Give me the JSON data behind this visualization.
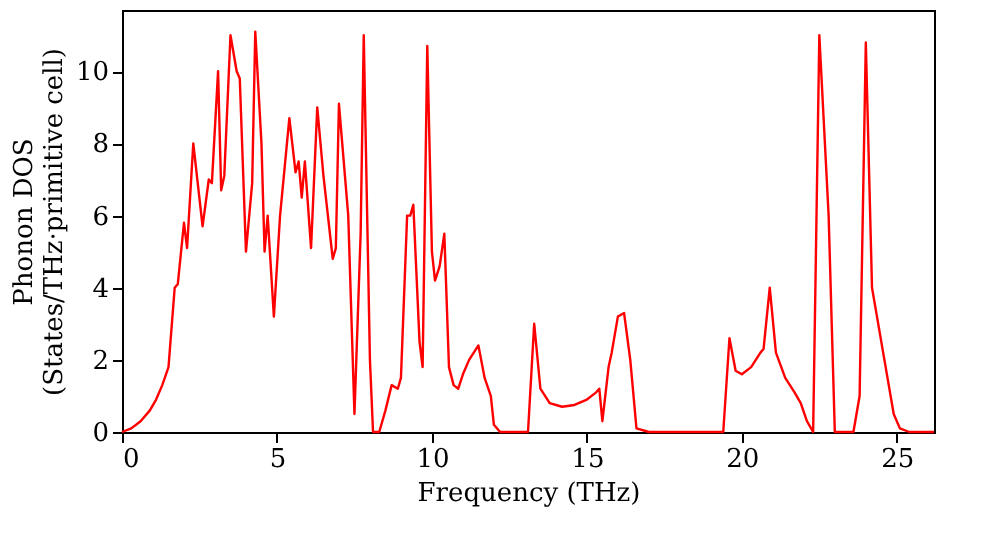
{
  "chart_data": {
    "type": "line",
    "xlabel": "Frequency (THz)",
    "ylabel": [
      "Phonon DOS",
      "(States/THz·primitive cell)"
    ],
    "xlim": [
      0,
      26.2
    ],
    "xticks": [
      0,
      5,
      10,
      15,
      20,
      25
    ],
    "ylim": [
      0,
      11.7
    ],
    "yticks": [
      0,
      2,
      4,
      6,
      8,
      10
    ],
    "grid": false,
    "legend": false,
    "series": [
      {
        "color": "#ff0000",
        "x": [
          0,
          0.3,
          0.6,
          0.9,
          1.1,
          1.3,
          1.5,
          1.7,
          1.8,
          2.0,
          2.1,
          2.3,
          2.6,
          2.8,
          2.9,
          3.1,
          3.2,
          3.3,
          3.5,
          3.7,
          3.8,
          4.0,
          4.2,
          4.3,
          4.5,
          4.6,
          4.7,
          4.9,
          5.1,
          5.4,
          5.6,
          5.7,
          5.8,
          5.9,
          6.1,
          6.3,
          6.5,
          6.8,
          6.9,
          7.0,
          7.3,
          7.5,
          7.7,
          7.8,
          8.0,
          8.1,
          8.3,
          8.5,
          8.7,
          8.9,
          9.0,
          9.2,
          9.3,
          9.4,
          9.6,
          9.7,
          9.85,
          10.0,
          10.1,
          10.25,
          10.4,
          10.55,
          10.7,
          10.85,
          11.0,
          11.2,
          11.5,
          11.7,
          11.9,
          12.0,
          12.2,
          13.1,
          13.3,
          13.5,
          13.8,
          14.2,
          14.6,
          15.0,
          15.3,
          15.4,
          15.5,
          15.7,
          15.8,
          16.0,
          16.2,
          16.4,
          16.6,
          17.0,
          19.4,
          19.6,
          19.8,
          20.0,
          20.3,
          20.6,
          20.7,
          20.9,
          21.1,
          21.4,
          21.7,
          21.9,
          22.1,
          22.3,
          22.5,
          22.8,
          23.0,
          23.6,
          23.8,
          24.0,
          24.2,
          24.6,
          24.9,
          25.1,
          25.4,
          26.2
        ],
        "values": [
          0,
          0.1,
          0.3,
          0.6,
          0.9,
          1.3,
          1.8,
          4.0,
          4.1,
          5.8,
          5.1,
          8.0,
          5.7,
          7.0,
          6.9,
          10.0,
          6.7,
          7.1,
          11.0,
          10.0,
          9.8,
          5.0,
          6.9,
          11.1,
          8.0,
          5.0,
          6.0,
          3.2,
          6.0,
          8.7,
          7.2,
          7.5,
          6.5,
          7.5,
          5.1,
          9.0,
          7.1,
          4.8,
          5.1,
          9.1,
          6.0,
          0.5,
          5.5,
          11.0,
          2.0,
          0.0,
          0.0,
          0.6,
          1.3,
          1.2,
          1.5,
          6.0,
          6.0,
          6.3,
          2.5,
          1.8,
          10.7,
          5.0,
          4.2,
          4.6,
          5.5,
          1.8,
          1.3,
          1.2,
          1.6,
          2.0,
          2.4,
          1.5,
          1.0,
          0.2,
          0,
          0,
          3.0,
          1.2,
          0.8,
          0.7,
          0.75,
          0.9,
          1.1,
          1.2,
          0.3,
          1.8,
          2.2,
          3.2,
          3.3,
          2.0,
          0.1,
          0,
          0,
          2.6,
          1.7,
          1.6,
          1.8,
          2.2,
          2.3,
          4.0,
          2.2,
          1.5,
          1.1,
          0.8,
          0.3,
          0,
          11.0,
          6.0,
          0,
          0,
          1.0,
          10.8,
          4.0,
          2.0,
          0.5,
          0.1,
          0,
          0
        ]
      }
    ]
  }
}
